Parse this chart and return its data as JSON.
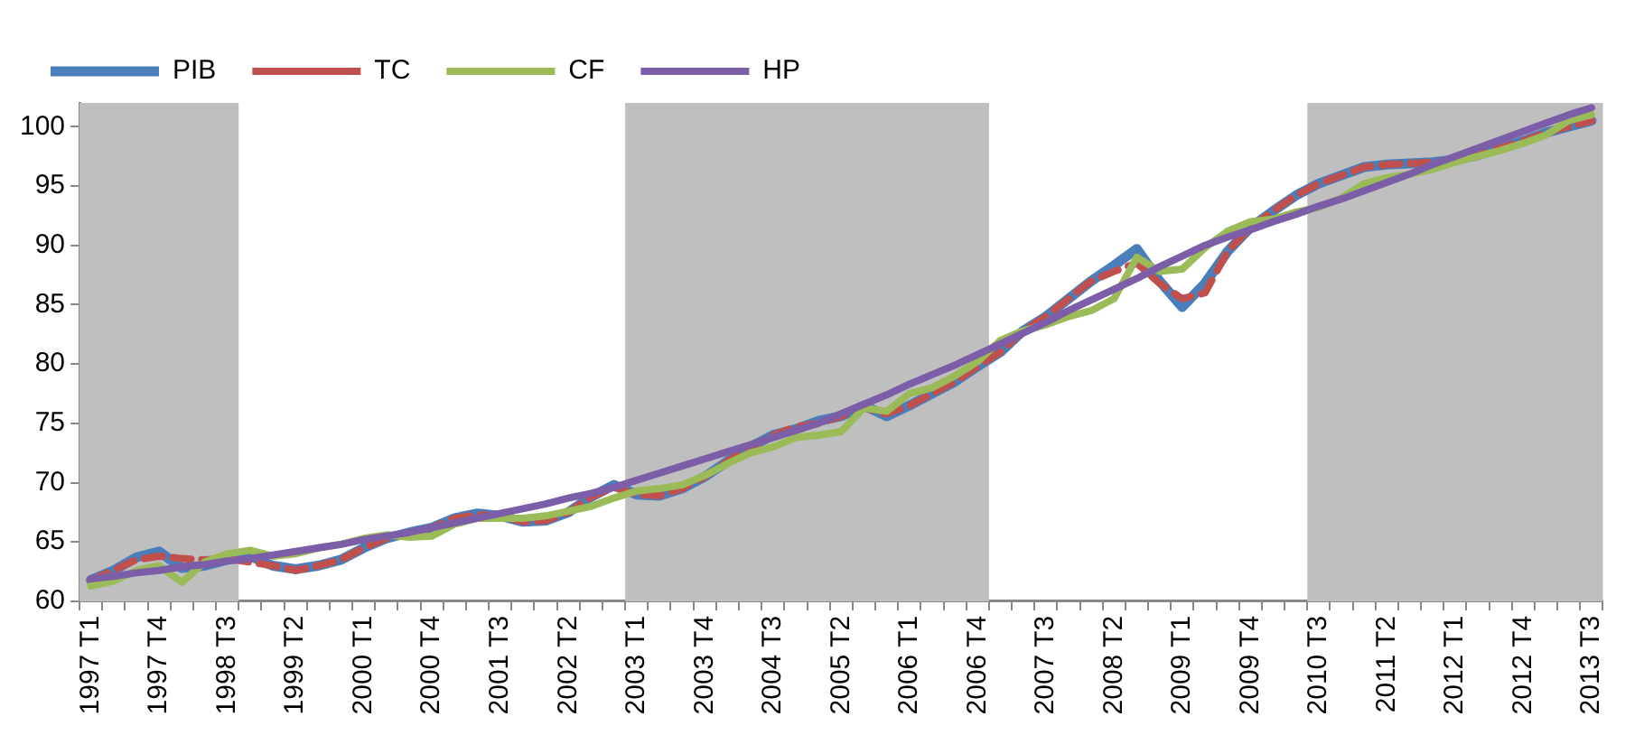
{
  "chart_data": {
    "type": "line",
    "categories": [
      "1997 T1",
      null,
      null,
      "1997 T4",
      null,
      null,
      "1998 T3",
      null,
      null,
      "1999 T2",
      null,
      null,
      "2000 T1",
      null,
      null,
      "2000 T4",
      null,
      null,
      "2001 T3",
      null,
      null,
      "2002 T2",
      null,
      null,
      "2003 T1",
      null,
      null,
      "2003 T4",
      null,
      null,
      "2004 T3",
      null,
      null,
      "2005 T2",
      null,
      null,
      "2006 T1",
      null,
      null,
      "2006 T4",
      null,
      null,
      "2007 T3",
      null,
      null,
      "2008 T2",
      null,
      null,
      "2009 T1",
      null,
      null,
      "2009 T4",
      null,
      null,
      "2010 T3",
      null,
      null,
      "2011 T2",
      null,
      null,
      "2012 T1",
      null,
      null,
      "2012 T4",
      null,
      null,
      "2013 T3"
    ],
    "series": [
      {
        "name": "PIB",
        "color": "#4a7ebb",
        "line_style": "solid",
        "values": [
          61.8,
          62.6,
          63.7,
          64.2,
          62.8,
          63.0,
          63.5,
          63.8,
          63.0,
          62.7,
          63.0,
          63.5,
          64.5,
          65.3,
          65.8,
          66.2,
          67.0,
          67.4,
          67.2,
          66.7,
          66.8,
          67.5,
          68.8,
          69.8,
          69.0,
          68.9,
          69.5,
          70.5,
          71.8,
          73.0,
          74.0,
          74.5,
          75.2,
          75.6,
          76.5,
          75.6,
          76.5,
          77.5,
          78.5,
          79.8,
          81.0,
          82.8,
          84.0,
          85.5,
          87.0,
          88.3,
          89.7,
          87.0,
          84.8,
          86.8,
          89.5,
          91.5,
          92.9,
          94.2,
          95.2,
          95.9,
          96.6,
          96.8,
          96.9,
          97.0,
          97.2,
          97.6,
          98.2,
          98.8,
          99.5,
          100.0,
          100.5
        ]
      },
      {
        "name": "TC",
        "color": "#c0504d",
        "line_style": "dashed",
        "values": [
          61.8,
          62.6,
          63.5,
          63.8,
          63.6,
          63.5,
          63.6,
          63.3,
          63.0,
          62.6,
          63.0,
          63.5,
          64.5,
          65.3,
          65.8,
          66.2,
          67.0,
          67.3,
          67.2,
          66.7,
          66.8,
          67.5,
          68.8,
          69.6,
          69.0,
          68.9,
          69.5,
          70.5,
          71.8,
          73.0,
          74.0,
          74.7,
          75.0,
          75.6,
          76.3,
          75.8,
          76.5,
          77.5,
          78.5,
          79.8,
          81.0,
          82.8,
          84.0,
          85.5,
          87.0,
          87.8,
          88.5,
          86.8,
          85.5,
          86.0,
          89.5,
          91.5,
          92.9,
          94.2,
          95.2,
          95.9,
          96.6,
          96.8,
          96.9,
          97.0,
          97.2,
          97.6,
          98.2,
          98.8,
          99.5,
          100.0,
          100.5
        ]
      },
      {
        "name": "CF",
        "color": "#9bbb59",
        "line_style": "solid",
        "values": [
          61.3,
          61.7,
          62.6,
          63.0,
          61.6,
          63.3,
          64.0,
          64.3,
          63.8,
          64.0,
          64.5,
          64.8,
          65.3,
          65.6,
          65.4,
          65.5,
          66.5,
          67.0,
          67.0,
          67.0,
          67.2,
          67.6,
          68.0,
          68.7,
          69.3,
          69.5,
          69.8,
          70.6,
          71.6,
          72.5,
          73.0,
          73.8,
          74.0,
          74.3,
          76.3,
          76.0,
          77.5,
          78.0,
          79.0,
          80.2,
          82.0,
          82.8,
          83.3,
          84.0,
          84.5,
          85.5,
          89.0,
          87.8,
          88.0,
          89.8,
          91.2,
          92.0,
          92.2,
          92.8,
          93.2,
          94.0,
          95.2,
          95.7,
          96.0,
          96.4,
          97.0,
          97.5,
          98.0,
          98.6,
          99.3,
          100.5,
          101.0
        ]
      },
      {
        "name": "HP",
        "color": "#7b5ea7",
        "line_style": "solid",
        "values": [
          61.9,
          62.1,
          62.4,
          62.6,
          62.9,
          63.1,
          63.4,
          63.6,
          63.9,
          64.2,
          64.5,
          64.8,
          65.2,
          65.5,
          65.8,
          66.2,
          66.6,
          67.0,
          67.4,
          67.8,
          68.2,
          68.7,
          69.1,
          69.6,
          70.2,
          70.8,
          71.4,
          72.0,
          72.6,
          73.2,
          73.8,
          74.4,
          75.0,
          75.8,
          76.6,
          77.4,
          78.3,
          79.1,
          79.9,
          80.8,
          81.7,
          82.6,
          83.5,
          84.5,
          85.4,
          86.3,
          87.2,
          88.2,
          89.1,
          90.0,
          90.7,
          91.3,
          92.0,
          92.6,
          93.3,
          93.9,
          94.6,
          95.3,
          96.0,
          96.8,
          97.5,
          98.2,
          98.9,
          99.6,
          100.3,
          101.0,
          101.6
        ]
      }
    ],
    "ylim": [
      60,
      102
    ],
    "yticks": [
      60,
      65,
      70,
      75,
      80,
      85,
      90,
      95,
      100
    ],
    "bands": [
      {
        "axis": "x",
        "from": "1997 T1",
        "to": "1998 T3",
        "color": "#bfbfbf"
      },
      {
        "axis": "x",
        "from": "2003 T1",
        "to": "2006 T4",
        "color": "#bfbfbf"
      },
      {
        "axis": "x",
        "from": "2010 T3",
        "to": "2013 T3",
        "color": "#bfbfbf"
      }
    ],
    "grid": false,
    "legend": "top left",
    "marker": "none"
  }
}
